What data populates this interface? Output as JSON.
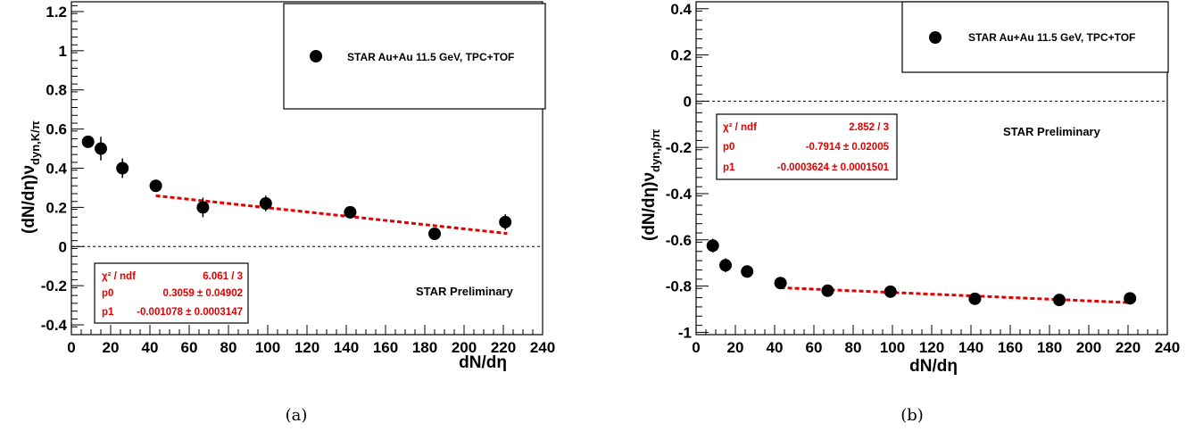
{
  "chart_data": [
    {
      "type": "scatter",
      "caption": "(a)",
      "xlabel": "dN/dη",
      "ylabel_main": "(dN/dη)ν",
      "ylabel_sub": "dyn,K/π",
      "xlim": [
        0,
        240
      ],
      "ylim": [
        -0.45,
        1.25
      ],
      "xticks": [
        0,
        20,
        40,
        60,
        80,
        100,
        120,
        140,
        160,
        180,
        200,
        220,
        240
      ],
      "yticks": [
        -0.4,
        -0.2,
        0,
        0.2,
        0.4,
        0.6,
        0.8,
        1,
        1.2
      ],
      "ytick_labels": [
        "-0.4",
        "-0.2",
        "0",
        "0.2",
        "0.4",
        "0.6",
        "0.8",
        "1",
        "1.2"
      ],
      "legend": "STAR Au+Au 11.5 GeV, TPC+TOF",
      "preliminary": "STAR Preliminary",
      "series": [
        {
          "name": "STAR Au+Au 11.5 GeV, TPC+TOF",
          "x": [
            8.5,
            15,
            26,
            43,
            67,
            99,
            142,
            185,
            221
          ],
          "y": [
            0.535,
            0.5,
            0.4,
            0.31,
            0.2,
            0.22,
            0.175,
            0.065,
            0.125
          ],
          "yerr": [
            0.03,
            0.06,
            0.05,
            0.025,
            0.05,
            0.04,
            0.03,
            0.02,
            0.04
          ]
        }
      ],
      "fit": {
        "x_range": [
          43,
          222
        ],
        "p0": 0.3059,
        "p1": -0.001078
      },
      "stats": {
        "chi2_label": "χ² / ndf",
        "chi2_value": "6.061 / 3",
        "p0_label": "p0",
        "p0_value": "0.3059 ± 0.04902",
        "p1_label": "p1",
        "p1_value": "-0.001078 ± 0.0003147"
      },
      "zero_line": true,
      "colors": {
        "marker": "#000000",
        "fit": "#e00000"
      }
    },
    {
      "type": "scatter",
      "caption": "(b)",
      "xlabel": "dN/dη",
      "ylabel_main": "(dN/dη)ν",
      "ylabel_sub": "dyn,p/π",
      "xlim": [
        0,
        240
      ],
      "ylim": [
        -1.01,
        0.43
      ],
      "xticks": [
        0,
        20,
        40,
        60,
        80,
        100,
        120,
        140,
        160,
        180,
        200,
        220,
        240
      ],
      "yticks": [
        -1,
        -0.8,
        -0.6,
        -0.4,
        -0.2,
        0,
        0.2,
        0.4
      ],
      "ytick_labels": [
        "-1",
        "-0.8",
        "-0.6",
        "-0.4",
        "-0.2",
        "0",
        "0.2",
        "0.4"
      ],
      "legend": "STAR Au+Au 11.5 GeV, TPC+TOF",
      "preliminary": "STAR Preliminary",
      "series": [
        {
          "name": "STAR Au+Au 11.5 GeV, TPC+TOF",
          "x": [
            8.5,
            15,
            26,
            43,
            67,
            99,
            142,
            185,
            221
          ],
          "y": [
            -0.625,
            -0.71,
            -0.737,
            -0.787,
            -0.82,
            -0.824,
            -0.855,
            -0.86,
            -0.853
          ],
          "yerr": [
            0.03,
            0.03,
            0.015,
            0.015,
            0.015,
            0.015,
            0.015,
            0.015,
            0.015
          ]
        }
      ],
      "fit": {
        "x_range": [
          43,
          222
        ],
        "p0": -0.7914,
        "p1": -0.0003624
      },
      "stats": {
        "chi2_label": "χ² / ndf",
        "chi2_value": "2.852 / 3",
        "p0_label": "p0",
        "p0_value": "-0.7914 ± 0.02005",
        "p1_label": "p1",
        "p1_value": "-0.0003624 ± 0.0001501"
      },
      "zero_line": true,
      "colors": {
        "marker": "#000000",
        "fit": "#e00000"
      }
    }
  ]
}
